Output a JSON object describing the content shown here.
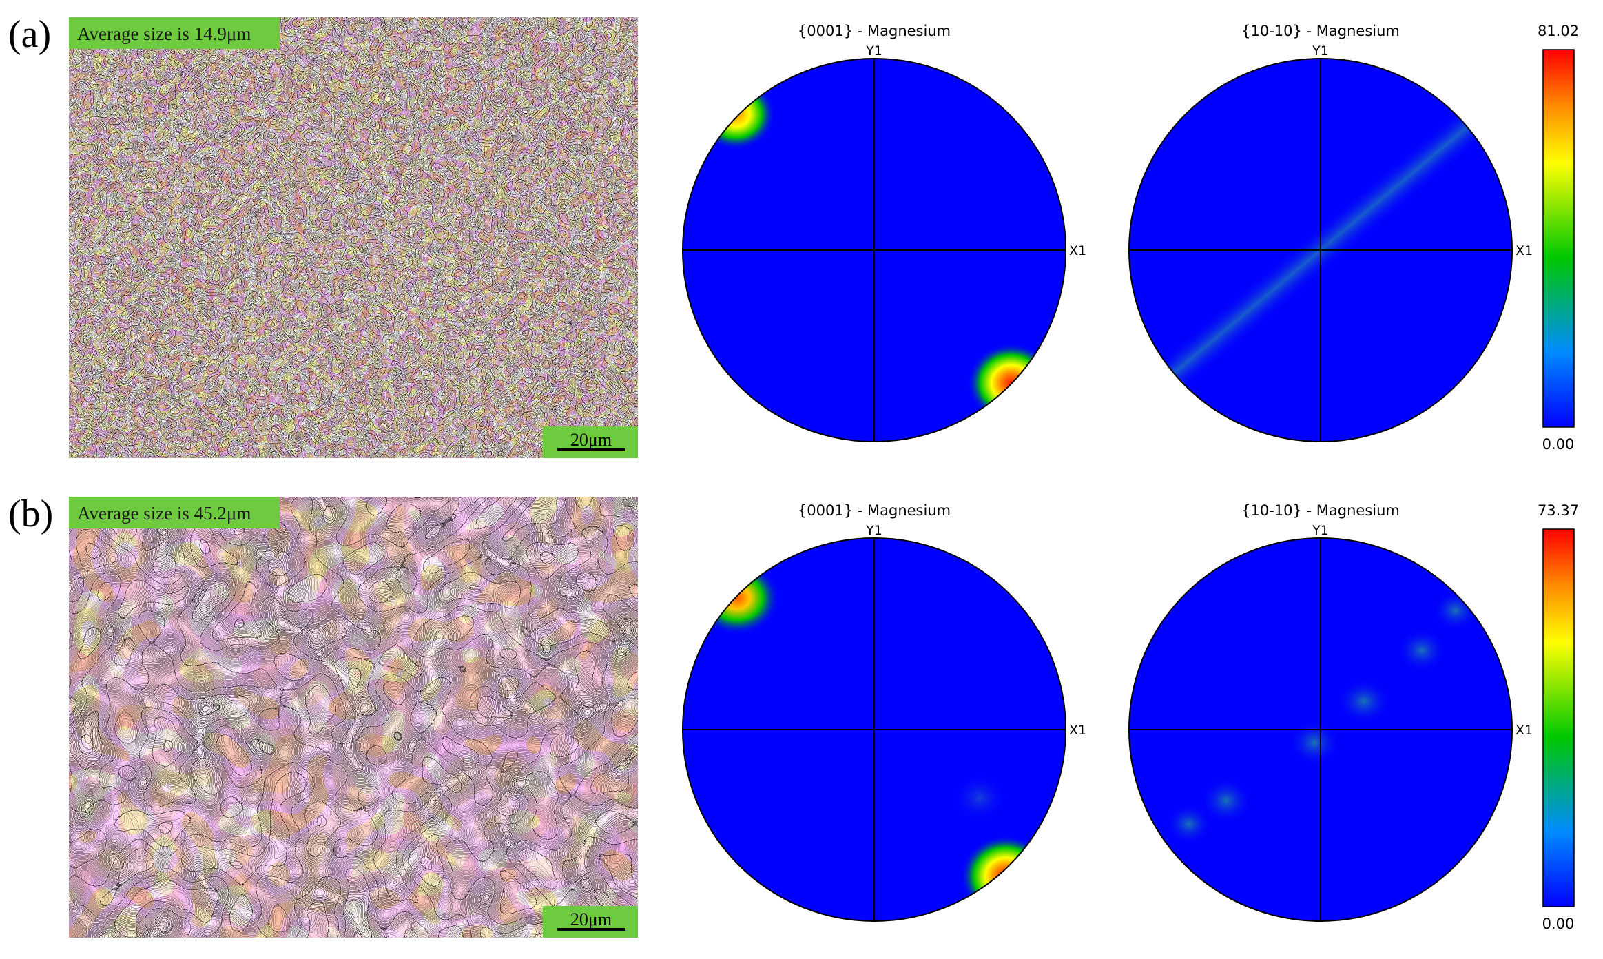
{
  "panels": [
    {
      "id": "a",
      "label": "(a)",
      "map": {
        "average_label": "Average  size is 14.9μm",
        "scale_bar": "20μm",
        "grain_size_um": 14.9,
        "dominant_colors": [
          "#ff4fc8",
          "#ff66b3",
          "#ffd21f",
          "#ff9e3d",
          "#e84dff",
          "#ffff33"
        ]
      },
      "pole_figures": [
        {
          "title": "{0001} - Magnesium",
          "y_axis": "Y1",
          "x_axis": "X1"
        },
        {
          "title": "{10-10} - Magnesium",
          "y_axis": "Y1",
          "x_axis": "X1"
        }
      ],
      "colorbar": {
        "max_label": "81.02",
        "min_label": "0.00",
        "max": 81.02,
        "min": 0.0
      }
    },
    {
      "id": "b",
      "label": "(b)",
      "map": {
        "average_label": "Average  size is 45.2μm",
        "scale_bar": "20μm",
        "grain_size_um": 45.2,
        "dominant_colors": [
          "#ff5fb0",
          "#ff8a4a",
          "#ffb13a",
          "#e860ff",
          "#ff4f9e",
          "#ffc83c"
        ]
      },
      "pole_figures": [
        {
          "title": "{0001} - Magnesium",
          "y_axis": "Y1",
          "x_axis": "X1"
        },
        {
          "title": "{10-10} - Magnesium",
          "y_axis": "Y1",
          "x_axis": "X1"
        }
      ],
      "colorbar": {
        "max_label": "73.37",
        "min_label": "0.00",
        "max": 73.37,
        "min": 0.0
      }
    }
  ],
  "colors": {
    "pole_background": "#0000ff",
    "label_box": "#6ecb3f",
    "colorbar_stops": [
      "#0000ff",
      "#008cff",
      "#00c800",
      "#ffff00",
      "#ff8c00",
      "#ff0000"
    ]
  }
}
